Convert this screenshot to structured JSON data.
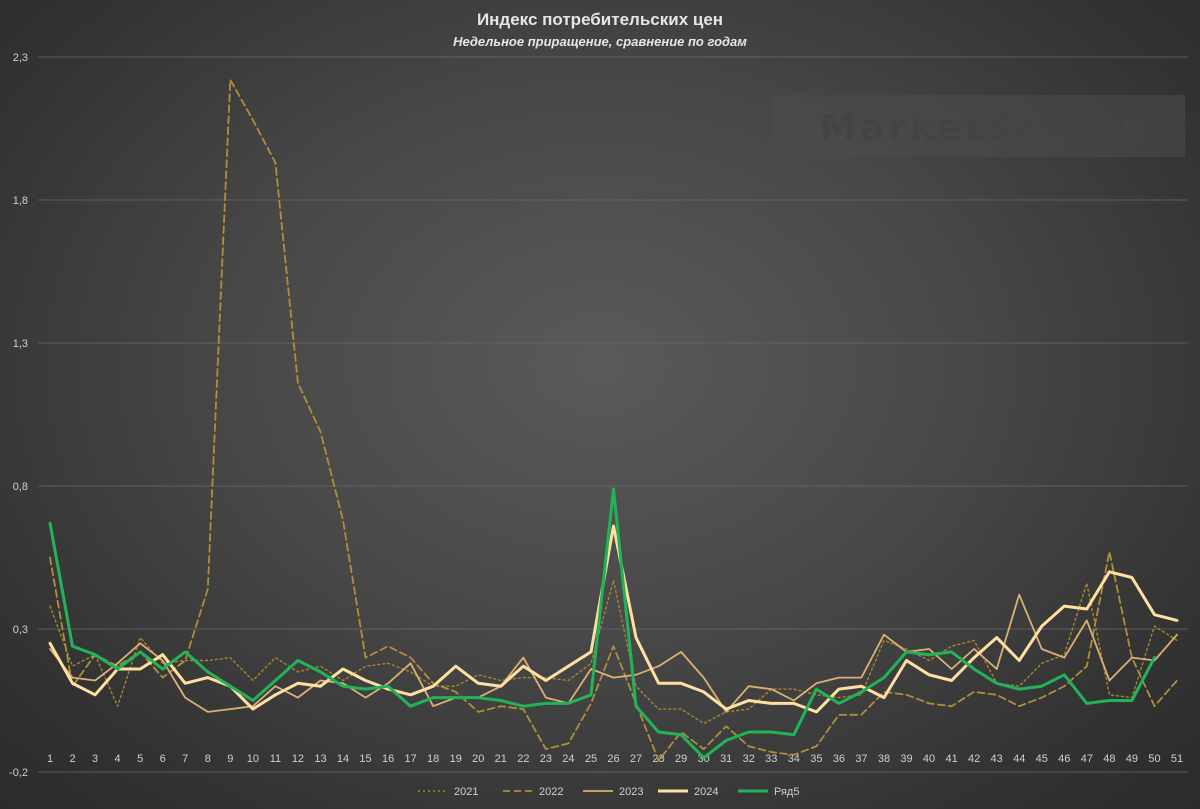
{
  "chart_data": {
    "type": "line",
    "title": "Индекс потребительских цен",
    "subtitle": "Недельное приращение, сравнение по годам",
    "watermark": "MarketScreen",
    "ylim": [
      -0.2,
      2.3
    ],
    "yticks": [
      "-0,2",
      "0,3",
      "0,8",
      "1,3",
      "1,8",
      "2,3"
    ],
    "ytick_values": [
      -0.2,
      0.3,
      0.8,
      1.3,
      1.8,
      2.3
    ],
    "grid": true,
    "legend_position": "bottom",
    "categories": [
      "1",
      "2",
      "3",
      "4",
      "5",
      "6",
      "7",
      "8",
      "9",
      "10",
      "11",
      "12",
      "13",
      "14",
      "15",
      "16",
      "17",
      "18",
      "19",
      "20",
      "21",
      "22",
      "23",
      "24",
      "25",
      "26",
      "27",
      "28",
      "29",
      "30",
      "31",
      "32",
      "33",
      "34",
      "35",
      "36",
      "37",
      "38",
      "39",
      "40",
      "41",
      "42",
      "43",
      "44",
      "45",
      "46",
      "47",
      "48",
      "49",
      "50",
      "51"
    ],
    "series": [
      {
        "name": "2021",
        "color": "#a8862e",
        "dash": "dotted",
        "width": 1.4,
        "values": [
          0.38,
          0.17,
          0.21,
          0.03,
          0.27,
          0.18,
          0.19,
          0.19,
          0.2,
          0.12,
          0.2,
          0.15,
          0.17,
          0.12,
          0.17,
          0.18,
          0.15,
          0.1,
          0.1,
          0.14,
          0.12,
          0.13,
          0.13,
          0.12,
          0.18,
          0.47,
          0.1,
          0.02,
          0.02,
          -0.03,
          0.01,
          0.02,
          0.09,
          0.09,
          0.07,
          0.06,
          0.07,
          0.26,
          0.23,
          0.19,
          0.24,
          0.26,
          0.11,
          0.1,
          0.18,
          0.21,
          0.46,
          0.07,
          0.06,
          0.31,
          0.26
        ]
      },
      {
        "name": "2022",
        "color": "#b08f3a",
        "dash": "dashed",
        "width": 1.8,
        "values": [
          0.55,
          0.1,
          0.21,
          0.17,
          0.22,
          0.13,
          0.19,
          0.44,
          2.22,
          2.08,
          1.93,
          1.16,
          0.99,
          0.68,
          0.2,
          0.24,
          0.2,
          0.11,
          0.08,
          0.01,
          0.03,
          0.02,
          -0.12,
          -0.1,
          0.04,
          0.24,
          0.04,
          -0.16,
          -0.06,
          -0.12,
          -0.04,
          -0.11,
          -0.13,
          -0.14,
          -0.11,
          0.0,
          0.0,
          0.08,
          0.07,
          0.04,
          0.03,
          0.08,
          0.07,
          0.03,
          0.06,
          0.1,
          0.17,
          0.57,
          0.2,
          0.03,
          0.12
        ]
      },
      {
        "name": "2023",
        "color": "#dbb074",
        "dash": "solid",
        "width": 1.8,
        "values": [
          0.23,
          0.13,
          0.12,
          0.18,
          0.25,
          0.19,
          0.06,
          0.01,
          0.02,
          0.03,
          0.1,
          0.06,
          0.12,
          0.11,
          0.06,
          0.11,
          0.18,
          0.03,
          0.06,
          0.06,
          0.1,
          0.2,
          0.06,
          0.04,
          0.16,
          0.13,
          0.14,
          0.17,
          0.22,
          0.13,
          0.01,
          0.1,
          0.09,
          0.05,
          0.11,
          0.13,
          0.13,
          0.28,
          0.22,
          0.23,
          0.16,
          0.23,
          0.16,
          0.42,
          0.23,
          0.2,
          0.33,
          0.12,
          0.2,
          0.19,
          0.28
        ]
      },
      {
        "name": "2024",
        "color": "#ffe0a0",
        "dash": "solid",
        "width": 3,
        "values": [
          0.25,
          0.11,
          0.07,
          0.16,
          0.16,
          0.21,
          0.11,
          0.13,
          0.1,
          0.02,
          0.07,
          0.11,
          0.1,
          0.16,
          0.12,
          0.09,
          0.07,
          0.1,
          0.17,
          0.11,
          0.1,
          0.17,
          0.12,
          0.17,
          0.22,
          0.66,
          0.27,
          0.11,
          0.11,
          0.08,
          0.02,
          0.05,
          0.04,
          0.04,
          0.01,
          0.09,
          0.1,
          0.06,
          0.19,
          0.14,
          0.12,
          0.2,
          0.27,
          0.19,
          0.31,
          0.38,
          0.37,
          0.5,
          0.48,
          0.35,
          0.33
        ]
      },
      {
        "name": "Ряд5",
        "color": "#22b358",
        "dash": "solid",
        "width": 3,
        "values": [
          0.67,
          0.24,
          0.21,
          0.16,
          0.22,
          0.16,
          0.22,
          0.15,
          0.1,
          0.05,
          0.12,
          0.19,
          0.15,
          0.1,
          0.09,
          0.1,
          0.03,
          0.06,
          0.06,
          0.06,
          0.05,
          0.03,
          0.04,
          0.04,
          0.07,
          0.79,
          0.03,
          -0.06,
          -0.07,
          -0.15,
          -0.09,
          -0.06,
          -0.06,
          -0.07,
          0.09,
          0.04,
          0.08,
          0.13,
          0.22,
          0.21,
          0.22,
          0.16,
          0.11,
          0.09,
          0.1,
          0.14,
          0.04,
          0.05,
          0.05,
          0.2,
          null
        ]
      }
    ]
  }
}
